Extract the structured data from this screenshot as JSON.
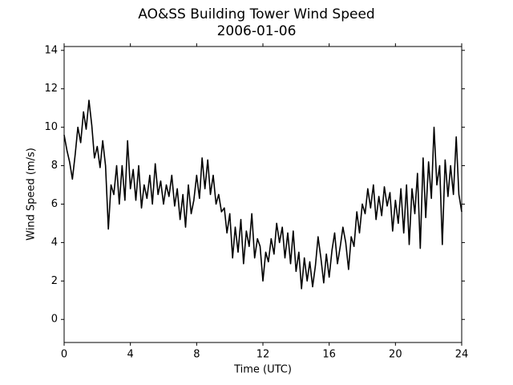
{
  "chart_data": {
    "type": "line",
    "title": "AO&SS Building Tower Wind Speed",
    "subtitle": "2006-01-06",
    "x_label": "Time (UTC)",
    "y_label": "Wind Speed (m/s)",
    "color": "#000000",
    "xlim": [
      0,
      24
    ],
    "xticks": [
      0,
      4,
      8,
      12,
      16,
      20,
      24
    ],
    "ylim": [
      -1.2,
      14.2
    ],
    "yticks": [
      0,
      2,
      4,
      6,
      8,
      10,
      12,
      14
    ],
    "grid": false,
    "x": [
      0,
      0.17,
      0.33,
      0.5,
      0.67,
      0.83,
      1,
      1.17,
      1.33,
      1.5,
      1.67,
      1.83,
      2,
      2.17,
      2.33,
      2.5,
      2.67,
      2.83,
      3,
      3.17,
      3.33,
      3.5,
      3.67,
      3.83,
      4,
      4.17,
      4.33,
      4.5,
      4.67,
      4.83,
      5,
      5.17,
      5.33,
      5.5,
      5.67,
      5.83,
      6,
      6.17,
      6.33,
      6.5,
      6.67,
      6.83,
      7,
      7.17,
      7.33,
      7.5,
      7.67,
      7.83,
      8,
      8.17,
      8.33,
      8.5,
      8.67,
      8.83,
      9,
      9.17,
      9.33,
      9.5,
      9.67,
      9.83,
      10,
      10.17,
      10.33,
      10.5,
      10.67,
      10.83,
      11,
      11.17,
      11.33,
      11.5,
      11.67,
      11.83,
      12,
      12.17,
      12.33,
      12.5,
      12.67,
      12.83,
      13,
      13.17,
      13.33,
      13.5,
      13.67,
      13.83,
      14,
      14.17,
      14.33,
      14.5,
      14.67,
      14.83,
      15,
      15.17,
      15.33,
      15.5,
      15.67,
      15.83,
      16,
      16.17,
      16.33,
      16.5,
      16.67,
      16.83,
      17,
      17.17,
      17.33,
      17.5,
      17.67,
      17.83,
      18,
      18.17,
      18.33,
      18.5,
      18.67,
      18.83,
      19,
      19.17,
      19.33,
      19.5,
      19.67,
      19.83,
      20,
      20.17,
      20.33,
      20.5,
      20.67,
      20.83,
      21,
      21.17,
      21.33,
      21.5,
      21.67,
      21.83,
      22,
      22.17,
      22.33,
      22.5,
      22.67,
      22.83,
      23,
      23.17,
      23.33,
      23.5,
      23.67,
      23.83,
      24
    ],
    "values": [
      9.6,
      8.8,
      8.2,
      7.3,
      8.6,
      10.0,
      9.2,
      10.8,
      9.9,
      11.4,
      10.1,
      8.4,
      9.0,
      7.9,
      9.3,
      8.0,
      4.7,
      7.0,
      6.5,
      8.0,
      6.0,
      8.0,
      6.2,
      9.3,
      6.8,
      7.8,
      6.2,
      8.0,
      5.8,
      7.0,
      6.3,
      7.5,
      6.0,
      8.1,
      6.5,
      7.2,
      6.0,
      7.0,
      6.4,
      7.5,
      5.9,
      6.8,
      5.2,
      6.5,
      4.8,
      7.0,
      5.5,
      6.2,
      7.5,
      6.3,
      8.4,
      6.8,
      8.3,
      6.5,
      7.5,
      6.0,
      6.5,
      5.6,
      5.8,
      4.5,
      5.5,
      3.2,
      4.8,
      3.5,
      5.2,
      2.9,
      4.6,
      3.8,
      5.5,
      3.2,
      4.2,
      3.8,
      2.0,
      3.5,
      3.0,
      4.2,
      3.4,
      5.0,
      4.0,
      4.8,
      3.2,
      4.5,
      2.9,
      4.6,
      2.5,
      3.5,
      1.6,
      3.2,
      2.0,
      3.0,
      1.7,
      2.8,
      4.3,
      3.2,
      1.9,
      3.4,
      2.2,
      3.6,
      4.5,
      2.9,
      3.8,
      4.8,
      4.0,
      2.6,
      4.3,
      3.8,
      5.6,
      4.5,
      6.0,
      5.5,
      6.8,
      5.8,
      7.0,
      5.2,
      6.4,
      5.4,
      6.9,
      5.9,
      6.6,
      4.6,
      6.2,
      5.0,
      6.8,
      4.5,
      7.0,
      3.9,
      6.8,
      5.5,
      7.6,
      3.7,
      8.4,
      5.3,
      8.2,
      6.3,
      10.0,
      7.0,
      8.0,
      3.9,
      8.3,
      6.4,
      8.0,
      6.5,
      9.5,
      6.5,
      5.6
    ]
  }
}
